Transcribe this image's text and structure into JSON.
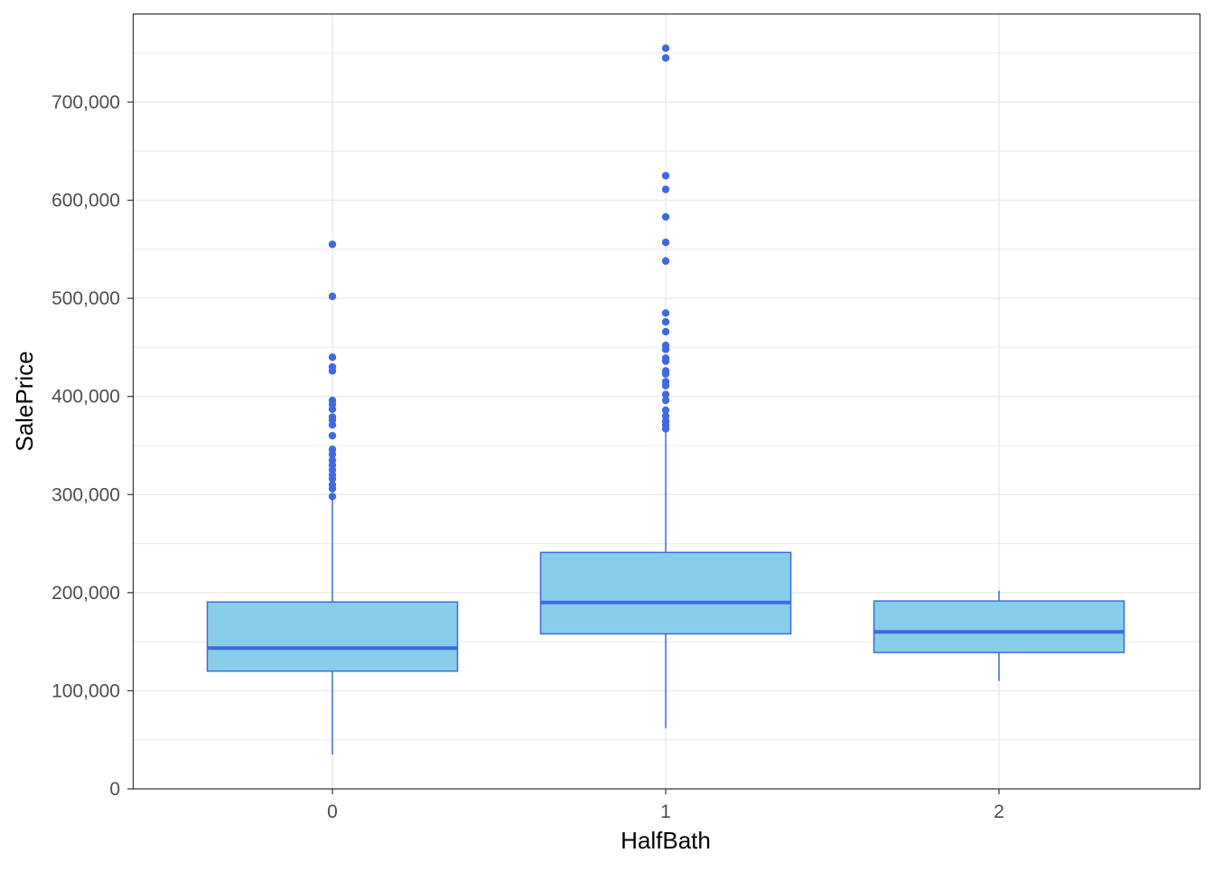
{
  "chart_data": {
    "type": "box",
    "title": "",
    "xlabel": "HalfBath",
    "ylabel": "SalePrice",
    "ylim": [
      -5000,
      790000
    ],
    "y_ticks": [
      0,
      100000,
      200000,
      300000,
      400000,
      500000,
      600000,
      700000
    ],
    "y_tick_labels": [
      "0",
      "100,000",
      "200,000",
      "300,000",
      "400,000",
      "500,000",
      "600,000",
      "700,000"
    ],
    "categories": [
      "0",
      "1",
      "2"
    ],
    "grid": true,
    "colors": {
      "fill": "#87CEEB",
      "stroke": "#4169E1",
      "grid": "#EBEBEB",
      "panel_border": "#333333"
    },
    "boxes": [
      {
        "category": "0",
        "lower_whisker": 35000,
        "q1": 120000,
        "median": 143500,
        "q3": 190500,
        "upper_whisker": 295000,
        "outliers": [
          555000,
          502000,
          440000,
          430000,
          426000,
          396000,
          392000,
          387000,
          379000,
          376000,
          371000,
          360000,
          346000,
          341000,
          335000,
          330000,
          325000,
          320000,
          316000,
          310000,
          306000,
          298000
        ]
      },
      {
        "category": "1",
        "lower_whisker": 62000,
        "q1": 158000,
        "median": 190000,
        "q3": 241000,
        "upper_whisker": 364000,
        "outliers": [
          755000,
          745000,
          625000,
          611000,
          583000,
          557000,
          538000,
          485000,
          476000,
          466000,
          452000,
          448000,
          439000,
          436000,
          426000,
          423000,
          415000,
          411000,
          402000,
          396000,
          386000,
          380000,
          375000,
          371000,
          367000
        ]
      },
      {
        "category": "2",
        "lower_whisker": 110000,
        "q1": 139000,
        "median": 160000,
        "q3": 191500,
        "upper_whisker": 202000,
        "outliers": []
      }
    ]
  }
}
